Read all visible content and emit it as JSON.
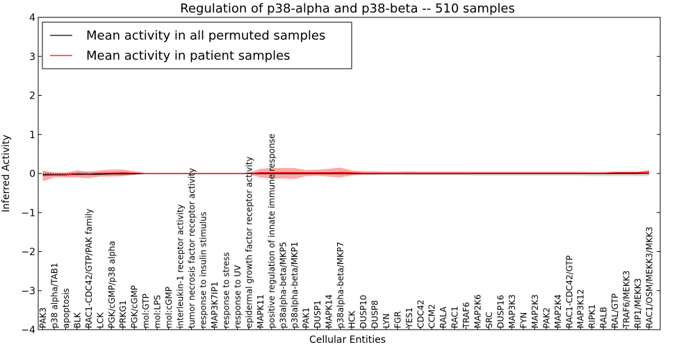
{
  "chart_data": {
    "type": "line",
    "title": "Regulation of p38-alpha and p38-beta -- 510 samples",
    "xlabel": "Cellular Entities",
    "ylabel": "Inferred Activity",
    "ylim": [
      -4,
      4
    ],
    "yticks": [
      4,
      3,
      2,
      1,
      0,
      -1,
      -2,
      -3,
      -4
    ],
    "ytick_labels": [
      "4",
      "3",
      "2",
      "1",
      "0",
      "−1",
      "−2",
      "−3",
      "−4"
    ],
    "legend_position": "top-left",
    "categories": [
      "PAK3",
      "p38 alpha/TAB1",
      "apoptosis",
      "BLK",
      "RAC1-CDC42/GTP/PAK family",
      "LCK",
      "PGK/cGMP/p38 alpha",
      "PRKG1",
      "PGK/cGMP",
      "mol:GTP",
      "mol:LPS",
      "mol:cGMP",
      "interleukin-1 receptor activity",
      "tumor necrosis factor receptor activity",
      "response to insulin stimulus",
      "MAP3K7IP1",
      "response to stress",
      "response to UV",
      "epidermal growth factor receptor activity",
      "MAPK11",
      "positive regulation of innate immune response",
      "p38alpha-beta/MKP5",
      "p38alpha-beta/MKP1",
      "PAK1",
      "DUSP1",
      "MAPK14",
      "p38alpha-beta/MKP7",
      "HCK",
      "DUSP10",
      "DUSP8",
      "LYN",
      "FGR",
      "YES1",
      "CDC42",
      "CCM2",
      "RALA",
      "RAC1",
      "TRAF6",
      "MAP2K6",
      "SRC",
      "DUSP16",
      "MAP3K3",
      "FYN",
      "MAP2K3",
      "PAK2",
      "MAP2K4",
      "RAC1-CDC42/GTP",
      "MAP3K12",
      "RIPK1",
      "RALB",
      "RAL/GTP",
      "TRAF6/MEKK3",
      "RIP1/MEKK3",
      "RAC1/OSM/MEKK3/MKK3"
    ],
    "series": [
      {
        "name": "Mean activity in all permuted samples",
        "color": "#000000",
        "values": [
          -0.03,
          -0.03,
          -0.03,
          -0.02,
          -0.02,
          -0.02,
          -0.01,
          -0.01,
          -0.01,
          0,
          0,
          0,
          0,
          0,
          0,
          0,
          0,
          0,
          0,
          0,
          0,
          0,
          0,
          0,
          0,
          0,
          0,
          0,
          0,
          0,
          0,
          0,
          0,
          0,
          0,
          0,
          0,
          0,
          0,
          0,
          0,
          0,
          0,
          0,
          0,
          0,
          0,
          0,
          0,
          0,
          0,
          0,
          0,
          0
        ],
        "band": {
          "color": "#bbbbbb",
          "upper": [
            0.02,
            0.02,
            0.02,
            0.03,
            0.03,
            0.03,
            0.03,
            0.03,
            0.02,
            0.01,
            0.01,
            0.01,
            0.01,
            0.01,
            0.01,
            0.01,
            0.01,
            0.01,
            0.01,
            0.01,
            0.01,
            0.01,
            0.01,
            0.01,
            0.01,
            0.01,
            0.01,
            0.01,
            0.01,
            0.01,
            0.01,
            0.01,
            0.01,
            0.01,
            0.01,
            0.01,
            0.01,
            0.01,
            0.01,
            0.01,
            0.01,
            0.01,
            0.01,
            0.01,
            0.01,
            0.01,
            0.01,
            0.01,
            0.01,
            0.01,
            0.01,
            0.01,
            0.01,
            0.01
          ],
          "lower": [
            -0.06,
            -0.06,
            -0.06,
            -0.06,
            -0.06,
            -0.05,
            -0.05,
            -0.05,
            -0.03,
            -0.02,
            -0.02,
            -0.02,
            -0.02,
            -0.02,
            -0.02,
            -0.02,
            -0.02,
            -0.02,
            -0.02,
            -0.03,
            -0.03,
            -0.03,
            -0.03,
            -0.03,
            -0.03,
            -0.03,
            -0.04,
            -0.04,
            -0.04,
            -0.04,
            -0.04,
            -0.04,
            -0.05,
            -0.05,
            -0.05,
            -0.05,
            -0.05,
            -0.05,
            -0.06,
            -0.06,
            -0.06,
            -0.06,
            -0.06,
            -0.06,
            -0.06,
            -0.06,
            -0.06,
            -0.06,
            -0.07,
            -0.07,
            -0.07,
            -0.07,
            -0.07,
            -0.07
          ]
        }
      },
      {
        "name": "Mean activity in patient samples",
        "color": "#ff0000",
        "values": [
          -0.05,
          -0.04,
          -0.04,
          0,
          -0.01,
          0.01,
          0.01,
          0.02,
          0.01,
          0,
          0,
          0,
          0,
          0,
          0,
          0,
          0,
          0,
          0,
          0.02,
          0.02,
          0.02,
          0.02,
          0.02,
          0.02,
          0.02,
          0.03,
          0.02,
          0.01,
          0.01,
          0.01,
          0.01,
          0.01,
          0.01,
          0.01,
          0.01,
          0.01,
          0.01,
          0.01,
          0.01,
          0.01,
          0.01,
          0.01,
          0.01,
          0.01,
          0.01,
          0.01,
          0.01,
          0.01,
          0.01,
          0.02,
          0.02,
          0.02,
          0.04
        ],
        "band": {
          "color": "#ff0000",
          "upper": [
            0.08,
            0.02,
            0.02,
            0.08,
            0.05,
            0.08,
            0.1,
            0.1,
            0.06,
            0.01,
            0.01,
            0.01,
            0.01,
            0.01,
            0.01,
            0.01,
            0.01,
            0.01,
            0.01,
            0.12,
            0.14,
            0.14,
            0.14,
            0.09,
            0.1,
            0.12,
            0.15,
            0.08,
            0.06,
            0.06,
            0.05,
            0.05,
            0.06,
            0.05,
            0.05,
            0.05,
            0.05,
            0.05,
            0.05,
            0.05,
            0.05,
            0.05,
            0.05,
            0.05,
            0.05,
            0.05,
            0.05,
            0.05,
            0.04,
            0.04,
            0.05,
            0.05,
            0.05,
            0.09
          ],
          "lower": [
            -0.2,
            -0.1,
            -0.1,
            -0.1,
            -0.12,
            -0.08,
            -0.08,
            -0.07,
            -0.03,
            -0.01,
            -0.01,
            -0.01,
            -0.01,
            -0.01,
            -0.01,
            -0.01,
            -0.01,
            -0.01,
            -0.01,
            -0.1,
            -0.13,
            -0.13,
            -0.14,
            -0.07,
            -0.06,
            -0.08,
            -0.1,
            -0.05,
            -0.03,
            -0.03,
            -0.02,
            -0.02,
            -0.02,
            -0.02,
            -0.02,
            -0.02,
            -0.02,
            -0.02,
            -0.02,
            -0.02,
            -0.02,
            -0.02,
            -0.02,
            -0.02,
            -0.02,
            -0.02,
            -0.02,
            -0.02,
            -0.02,
            -0.02,
            -0.02,
            -0.02,
            -0.02,
            0
          ]
        }
      }
    ]
  }
}
